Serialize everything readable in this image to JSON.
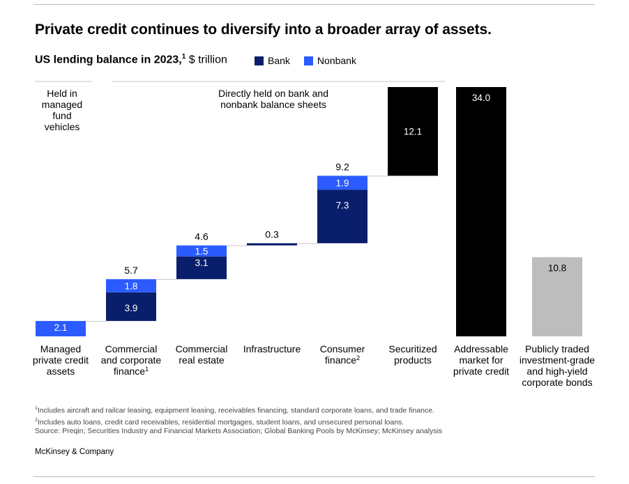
{
  "title": "Private credit continues to diversify into a broader array of assets.",
  "subtitle": {
    "bold": "US lending balance in 2023,",
    "sup": "1",
    "unit": " $ trillion"
  },
  "legend": [
    {
      "label": "Bank",
      "color": "#0a1f6b"
    },
    {
      "label": "Nonbank",
      "color": "#2b5bff"
    }
  ],
  "annotations": {
    "managed": [
      "Held in",
      "managed",
      "fund",
      "vehicles"
    ],
    "direct": [
      "Directly held on bank and",
      "nonbank balance sheets"
    ]
  },
  "chart_data": {
    "type": "bar",
    "subtype": "waterfall",
    "title": "US lending balance in 2023",
    "ylabel": "$ trillion",
    "ylim": [
      0,
      34.0
    ],
    "colors": {
      "Bank": "#0a1f6b",
      "Nonbank": "#2b5bff",
      "total": "#000000",
      "comparison": "#bdbdbd"
    },
    "categories": [
      {
        "label": [
          "Managed",
          "private credit",
          "assets"
        ],
        "sup": ""
      },
      {
        "label": [
          "Commercial",
          "and corporate",
          "finance"
        ],
        "sup": "1"
      },
      {
        "label": [
          "Commercial",
          "real estate"
        ],
        "sup": ""
      },
      {
        "label": [
          "Infrastructure"
        ],
        "sup": ""
      },
      {
        "label": [
          "Consumer",
          "finance"
        ],
        "sup": "2"
      },
      {
        "label": [
          "Securitized",
          "products"
        ],
        "sup": ""
      },
      {
        "label": [
          "Addressable",
          "market for",
          "private credit"
        ],
        "sup": ""
      },
      {
        "label": [
          "Publicly traded",
          "investment-grade",
          "and high-yield",
          "corporate bonds"
        ],
        "sup": ""
      }
    ],
    "bars": [
      {
        "kind": "step",
        "base": 0,
        "segments": [
          {
            "series": "Nonbank",
            "value": 2.1,
            "label": "2.1"
          }
        ],
        "total_label": ""
      },
      {
        "kind": "step",
        "base": 2.1,
        "segments": [
          {
            "series": "Bank",
            "value": 3.9,
            "label": "3.9"
          },
          {
            "series": "Nonbank",
            "value": 1.8,
            "label": "1.8"
          }
        ],
        "total_label": "5.7"
      },
      {
        "kind": "step",
        "base": 7.8,
        "segments": [
          {
            "series": "Bank",
            "value": 3.1,
            "label": "3.1"
          },
          {
            "series": "Nonbank",
            "value": 1.5,
            "label": "1.5"
          }
        ],
        "total_label": "4.6"
      },
      {
        "kind": "step",
        "base": 12.4,
        "segments": [
          {
            "series": "Bank",
            "value": 0.3,
            "label": ""
          }
        ],
        "total_label": "0.3"
      },
      {
        "kind": "step",
        "base": 12.7,
        "segments": [
          {
            "series": "Bank",
            "value": 7.3,
            "label": "7.3"
          },
          {
            "series": "Nonbank",
            "value": 1.9,
            "label": "1.9"
          }
        ],
        "total_label": "9.2"
      },
      {
        "kind": "step",
        "base": 21.9,
        "segments": [
          {
            "series": "total",
            "value": 12.1,
            "label": "12.1"
          }
        ],
        "total_label": ""
      },
      {
        "kind": "total",
        "base": 0,
        "segments": [
          {
            "series": "total",
            "value": 34.0,
            "label": "34.0"
          }
        ],
        "total_label": ""
      },
      {
        "kind": "comparison",
        "base": 0,
        "segments": [
          {
            "series": "comparison",
            "value": 10.8,
            "label": "10.8"
          }
        ],
        "total_label": ""
      }
    ]
  },
  "footnotes": [
    {
      "sup": "1",
      "text": "Includes aircraft and railcar leasing, equipment leasing, receivables financing, standard corporate loans, and trade finance."
    },
    {
      "sup": "2",
      "text": "Includes auto loans, credit card receivables, residential mortgages, student loans, and unsecured personal loans."
    },
    {
      "sup": "",
      "text": " Source: Preqin; Securities Industry and Financial Markets Association; Global Banking Pools by McKinsey; McKinsey analysis"
    }
  ],
  "brand": "McKinsey & Company"
}
